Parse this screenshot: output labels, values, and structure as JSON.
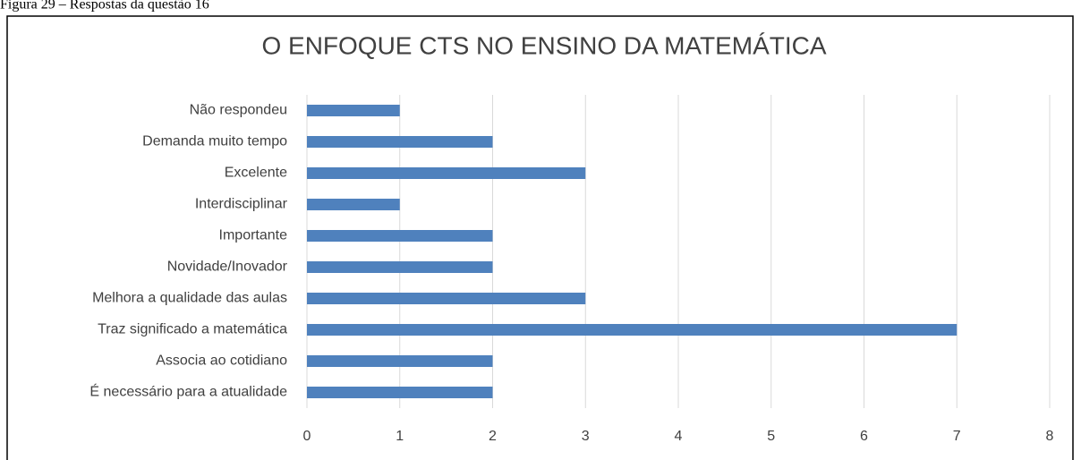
{
  "caption": "Figura 29 – Respostas da questão 16",
  "chart_data": {
    "type": "bar",
    "orientation": "horizontal",
    "title": "O ENFOQUE CTS NO ENSINO DA MATEMÁTICA",
    "categories": [
      "Não respondeu",
      "Demanda muito tempo",
      "Excelente",
      "Interdisciplinar",
      "Importante",
      "Novidade/Inovador",
      "Melhora a qualidade das aulas",
      "Traz significado a matemática",
      "Associa ao cotidiano",
      "É necessário para a atualidade"
    ],
    "values": [
      1,
      2,
      3,
      1,
      2,
      2,
      3,
      7,
      2,
      2
    ],
    "color": "#4f81bd",
    "xlim": [
      0,
      8
    ],
    "xticks": [
      0,
      1,
      2,
      3,
      4,
      5,
      6,
      7,
      8
    ],
    "grid": true
  }
}
